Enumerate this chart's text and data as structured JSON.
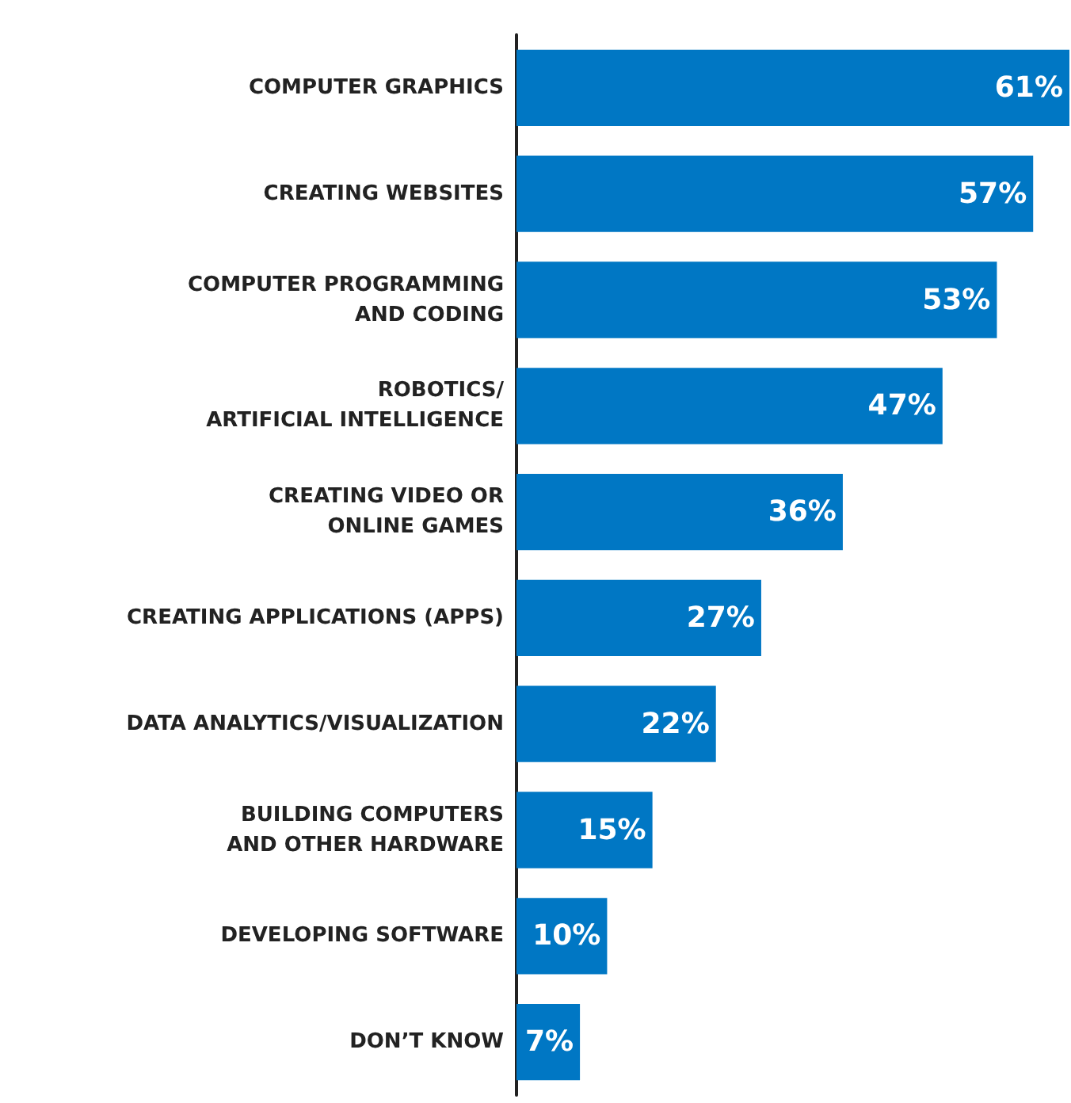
{
  "chart_data": {
    "type": "bar",
    "orientation": "horizontal",
    "categories": [
      "COMPUTER GRAPHICS",
      "CREATING WEBSITES",
      "COMPUTER PROGRAMMING\nAND CODING",
      "ROBOTICS/\nARTIFICIAL INTELLIGENCE",
      "CREATING VIDEO OR\nONLINE GAMES",
      "CREATING APPLICATIONS (APPS)",
      "DATA ANALYTICS/VISUALIZATION",
      "BUILDING COMPUTERS\nAND OTHER HARDWARE",
      "DEVELOPING SOFTWARE",
      "DON’T KNOW"
    ],
    "values": [
      61,
      57,
      53,
      47,
      36,
      27,
      22,
      15,
      10,
      7
    ],
    "value_labels": [
      "61%",
      "57%",
      "53%",
      "47%",
      "36%",
      "27%",
      "22%",
      "15%",
      "10%",
      "7%"
    ],
    "color": "#0077c4",
    "grid": false,
    "tick_labels": "y"
  }
}
